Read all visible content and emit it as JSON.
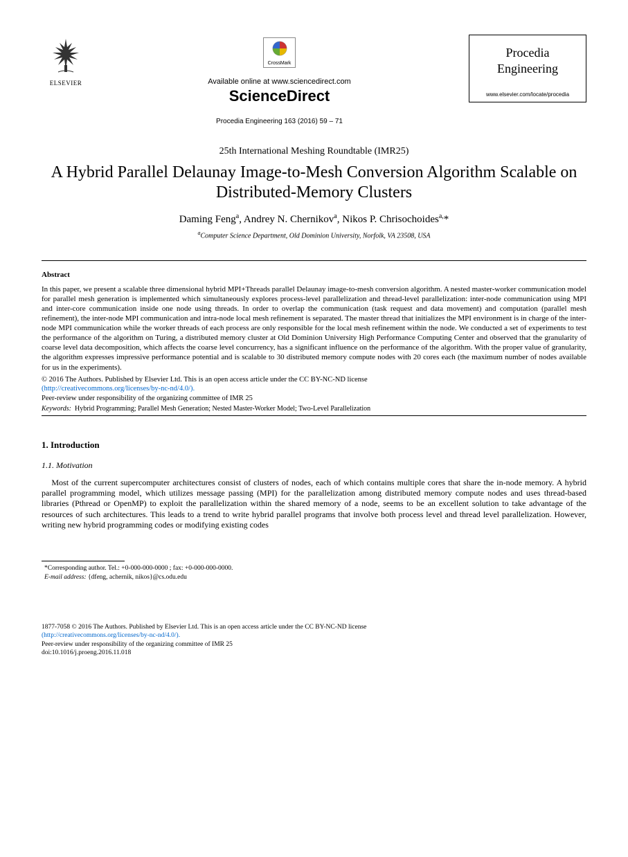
{
  "header": {
    "publisher_label": "ELSEVIER",
    "crossmark_label": "CrossMark",
    "available_text": "Available online at www.sciencedirect.com",
    "brand": "ScienceDirect",
    "citation": "Procedia Engineering 163 (2016) 59 – 71",
    "journal_name_line1": "Procedia",
    "journal_name_line2": "Engineering",
    "journal_url": "www.elsevier.com/locate/procedia"
  },
  "conference": "25th International Meshing Roundtable (IMR25)",
  "title": "A Hybrid Parallel Delaunay Image-to-Mesh Conversion Algorithm Scalable on Distributed-Memory Clusters",
  "authors_html": "Daming Feng<sup>a</sup>, Andrey N. Chernikov<sup>a</sup>, Nikos P. Chrisochoides<sup>a,</sup>*",
  "affiliation_html": "<sup>a</sup>Computer Science Department, Old Dominion University, Norfolk, VA 23508, USA",
  "abstract": {
    "heading": "Abstract",
    "body": "In this paper, we present a scalable three dimensional hybrid MPI+Threads parallel Delaunay image-to-mesh conversion algorithm. A nested master-worker communication model for parallel mesh generation is implemented which simultaneously explores process-level parallelization and thread-level parallelization: inter-node communication using MPI and inter-core communication inside one node using threads. In order to overlap the communication (task request and data movement) and computation (parallel mesh refinement), the inter-node MPI communication and intra-node local mesh refinement is separated. The master thread that initializes the MPI environment is in charge of the inter-node MPI communication while the worker threads of each process are only responsible for the local mesh refinement within the node. We conducted a set of experiments to test the performance of the algorithm on Turing, a distributed memory cluster at Old Dominion University High Performance Computing Center and observed that the granularity of coarse level data decomposition, which affects the coarse level concurrency, has a significant influence on the performance of the algorithm. With the proper value of granularity, the algorithm expresses impressive performance potential and is scalable to 30 distributed memory compute nodes with 20 cores each (the maximum number of nodes available for us in the experiments).",
    "copyright_line1": "© 2016 The Authors. Published by Elsevier Ltd. This is an open access article under the CC BY-NC-ND license",
    "license_url_text": "(http://creativecommons.org/licenses/by-nc-nd/4.0/).",
    "peer_review": "Peer-review under responsibility of the organizing committee of IMR 25",
    "keywords_label": "Keywords:",
    "keywords": "Hybrid Programming; Parallel Mesh Generation; Nested Master-Worker Model; Two-Level Parallelization"
  },
  "section1": {
    "heading": "1. Introduction",
    "sub_heading": "1.1. Motivation",
    "paragraph": "Most of the current supercomputer architectures consist of clusters of nodes, each of which contains multiple cores that share the in-node memory. A hybrid parallel programming model, which utilizes message passing (MPI) for the parallelization among distributed memory compute nodes and uses thread-based libraries (Pthread or OpenMP) to exploit the parallelization within the shared memory of a node, seems to be an excellent solution to take advantage of the resources of such architectures. This leads to a trend to write hybrid parallel programs that involve both process level and thread level parallelization. However, writing new hybrid programming codes or modifying existing codes"
  },
  "footnotes": {
    "corresponding": "*Corresponding author. Tel.: +0-000-000-0000 ; fax: +0-000-000-0000.",
    "email_label": "E-mail address:",
    "email_value": " {dfeng, achernik, nikos}@cs.odu.edu"
  },
  "footer": {
    "line1": "1877-7058 © 2016 The Authors. Published by Elsevier Ltd. This is an open access article under the CC BY-NC-ND license",
    "license_url_text": "(http://creativecommons.org/licenses/by-nc-nd/4.0/).",
    "peer_review": "Peer-review under responsibility of the organizing committee of IMR 25",
    "doi": "doi:10.1016/j.proeng.2016.11.018"
  },
  "colors": {
    "text": "#000000",
    "link": "#0066cc",
    "crossmark_red": "#cc3333",
    "crossmark_yellow": "#e6b800",
    "crossmark_green": "#66aa33",
    "crossmark_blue": "#3366cc"
  }
}
